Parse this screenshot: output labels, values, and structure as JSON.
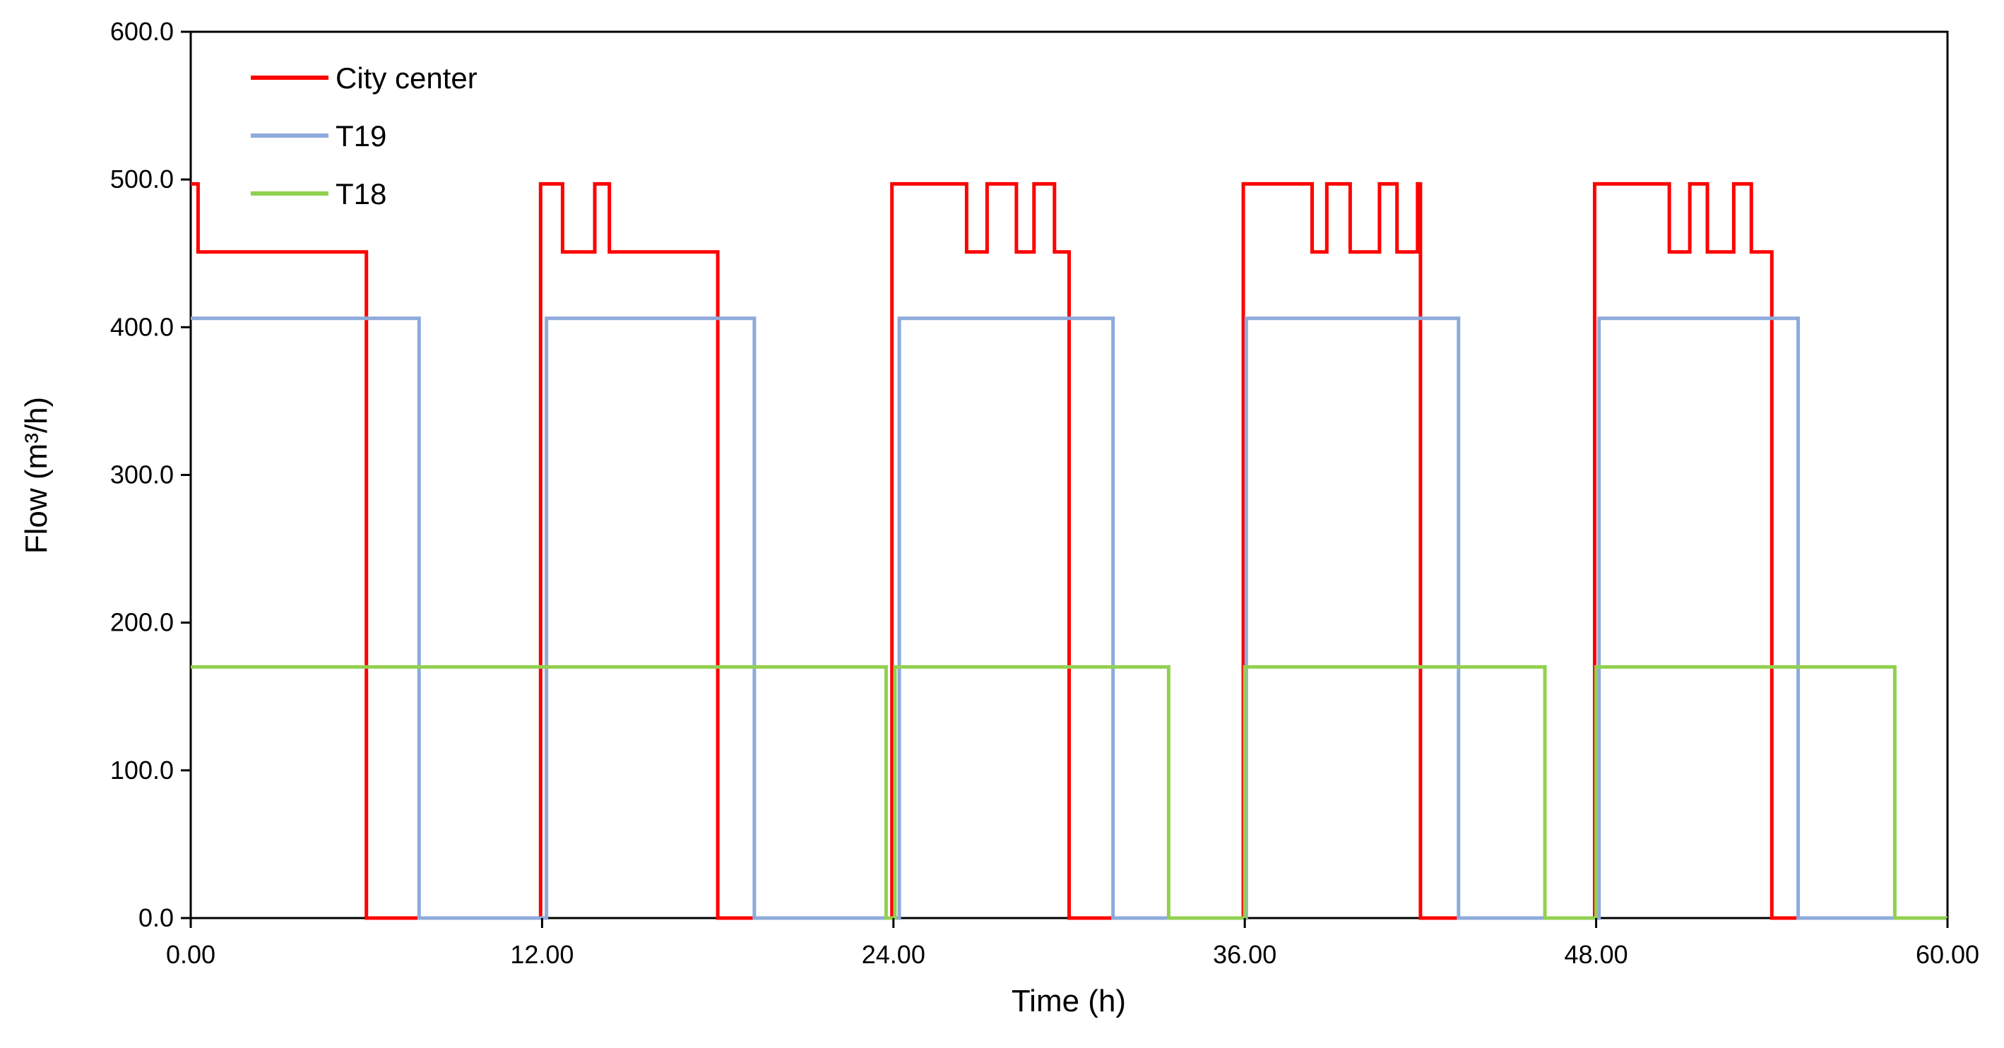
{
  "chart_data": {
    "type": "line",
    "title": "",
    "xlabel": "Time (h)",
    "ylabel": "Flow (m³/h)",
    "xlim": [
      0,
      60
    ],
    "ylim": [
      0,
      600
    ],
    "xticks": [
      0,
      12,
      24,
      36,
      48,
      60
    ],
    "xtick_labels": [
      "0.00",
      "12.00",
      "24.00",
      "36.00",
      "48.00",
      "60.00"
    ],
    "yticks": [
      0,
      100,
      200,
      300,
      400,
      500,
      600
    ],
    "ytick_labels": [
      "0.0",
      "100.0",
      "200.0",
      "300.0",
      "400.0",
      "500.0",
      "600.0"
    ],
    "grid": false,
    "legend_position": "top-left",
    "series": [
      {
        "name": "City center",
        "color": "#ff0000",
        "step": true,
        "x": [
          0,
          0.25,
          6.0,
          11.95,
          12.7,
          13.8,
          14.3,
          18.0,
          23.95,
          26.5,
          27.2,
          28.2,
          28.8,
          29.5,
          30.0,
          35.95,
          38.3,
          38.8,
          39.6,
          40.6,
          41.2,
          41.9,
          42.0,
          47.95,
          50.5,
          51.2,
          51.8,
          52.7,
          53.3,
          54.0,
          60.0
        ],
        "values": [
          497,
          451,
          0,
          497,
          451,
          497,
          451,
          0,
          497,
          451,
          497,
          451,
          497,
          451,
          0,
          497,
          451,
          497,
          451,
          497,
          451,
          497,
          0,
          497,
          451,
          497,
          451,
          497,
          451,
          0,
          0
        ]
      },
      {
        "name": "T19",
        "color": "#8eaadb",
        "step": true,
        "x": [
          0,
          7.8,
          12.15,
          19.25,
          24.2,
          31.5,
          36.05,
          43.3,
          48.1,
          54.9,
          60.0
        ],
        "values": [
          406,
          0,
          406,
          0,
          406,
          0,
          406,
          0,
          406,
          0,
          0
        ]
      },
      {
        "name": "T18",
        "color": "#92d050",
        "step": true,
        "x": [
          0,
          23.75,
          24.05,
          33.4,
          36.0,
          46.25,
          48.0,
          58.2,
          60.0
        ],
        "values": [
          170,
          0,
          170,
          0,
          170,
          0,
          170,
          0,
          0
        ]
      }
    ]
  }
}
